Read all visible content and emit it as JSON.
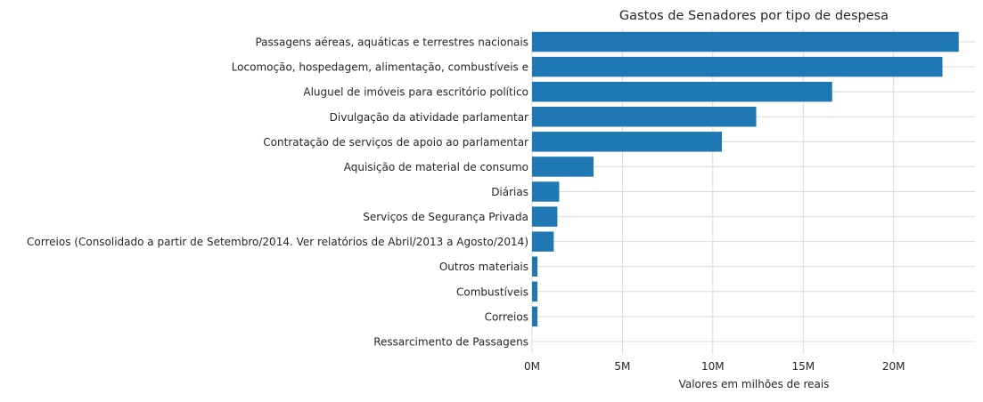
{
  "chart_data": {
    "type": "bar",
    "orientation": "horizontal",
    "title": "Gastos de Senadores por tipo de despesa",
    "xlabel": "Valores em milhões de reais",
    "ylabel": "",
    "xlim": [
      0,
      24.5
    ],
    "x_ticks": [
      0,
      5,
      10,
      15,
      20
    ],
    "x_tick_labels": [
      "0M",
      "5M",
      "10M",
      "15M",
      "20M"
    ],
    "grid": true,
    "bar_color": "#1f77b4",
    "categories": [
      "Passagens aéreas, aquáticas e terrestres nacionais",
      "Locomoção, hospedagem, alimentação, combustíveis e",
      "Aluguel de imóveis para escritório político",
      "Divulgação da atividade parlamentar",
      "Contratação de serviços de apoio ao parlamentar",
      "Aquisição de material de consumo",
      "Diárias",
      "Serviços de Segurança Privada",
      "Correios (Consolidado a partir de Setembro/2014.  Ver relatórios de Abril/2013 a Agosto/2014)",
      "Outros materiais",
      "Combustíveis",
      "Correios",
      "Ressarcimento de Passagens"
    ],
    "values": [
      23.6,
      22.7,
      16.6,
      12.4,
      10.5,
      3.4,
      1.5,
      1.4,
      1.2,
      0.3,
      0.3,
      0.3,
      0.0
    ]
  }
}
